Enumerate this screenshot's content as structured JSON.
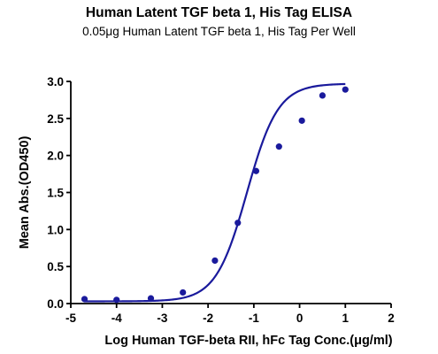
{
  "chart_data": {
    "type": "scatter",
    "title": "Human Latent TGF beta 1, His Tag ELISA",
    "subtitle": "0.05μg Human Latent TGF beta 1, His Tag Per Well",
    "xlabel": "Log Human TGF-beta RII, hFc Tag Conc.(μg/ml)",
    "ylabel": "Mean Abs.(OD450)",
    "xlim": [
      -5,
      2
    ],
    "ylim": [
      0,
      3.0
    ],
    "x_ticks": [
      -5,
      -4,
      -3,
      -2,
      -1,
      0,
      1,
      2
    ],
    "x_tick_labels": [
      "-5",
      "-4",
      "-3",
      "-2",
      "-1",
      "0",
      "1",
      "2"
    ],
    "y_ticks": [
      0,
      0.5,
      1.0,
      1.5,
      2.0,
      2.5,
      3.0
    ],
    "y_tick_labels": [
      "0.0",
      "0.5",
      "1.0",
      "1.5",
      "2.0",
      "2.5",
      "3.0"
    ],
    "grid": false,
    "legend": "none",
    "series": [
      {
        "x": [
          -4.7,
          -4.0,
          -3.25,
          -2.55,
          -1.85,
          -1.35,
          -0.95,
          -0.45,
          0.05,
          0.5,
          1.0
        ],
        "y": [
          0.06,
          0.05,
          0.07,
          0.15,
          0.58,
          1.09,
          1.79,
          2.12,
          2.47,
          2.81,
          2.89
        ],
        "fit": "4PL sigmoid",
        "color": "#1a1a9c"
      }
    ]
  }
}
